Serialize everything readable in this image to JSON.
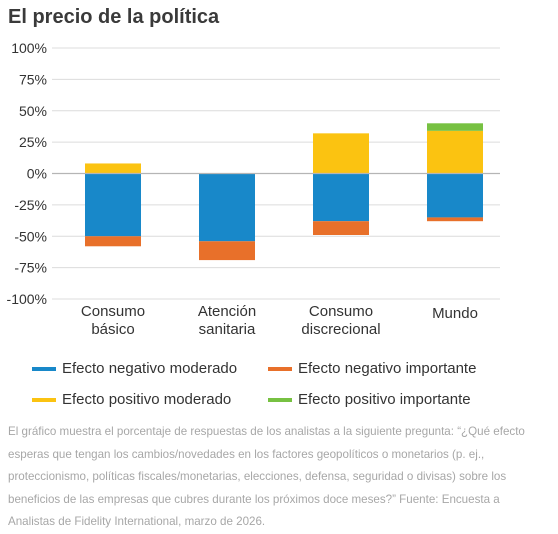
{
  "title": "El precio de la política",
  "colors": {
    "neg_moderate": "#1888c9",
    "neg_important": "#e8702a",
    "pos_moderate": "#fbc311",
    "pos_important": "#77c142",
    "grid": "#dcdcdc",
    "zero": "#b5b5b5",
    "tick_text": "#333333"
  },
  "chart_data": {
    "type": "bar",
    "stacked": true,
    "categories": [
      [
        "Consumo",
        "básico"
      ],
      [
        "Atención",
        "sanitaria"
      ],
      [
        "Consumo",
        "discrecional"
      ],
      [
        "Mundo"
      ]
    ],
    "ylim": [
      -100,
      100
    ],
    "yticks": [
      100,
      75,
      50,
      25,
      0,
      -25,
      -50,
      -75,
      -100
    ],
    "ytick_labels": [
      "100%",
      "75%",
      "50%",
      "25%",
      "0%",
      "-25%",
      "-50%",
      "-75%",
      "-100%"
    ],
    "grid": true,
    "legend_position": "bottom",
    "series": [
      {
        "name": "Efecto negativo moderado",
        "color_key": "neg_moderate",
        "values": [
          -50,
          -54,
          -38,
          -35
        ]
      },
      {
        "name": "Efecto negativo importante",
        "color_key": "neg_important",
        "values": [
          -8,
          -15,
          -11,
          -3
        ]
      },
      {
        "name": "Efecto positivo moderado",
        "color_key": "pos_moderate",
        "values": [
          8,
          0,
          32,
          34
        ]
      },
      {
        "name": "Efecto positivo importante",
        "color_key": "pos_important",
        "values": [
          0,
          0,
          0,
          6
        ]
      }
    ]
  },
  "legend": {
    "items": [
      {
        "label": "Efecto negativo moderado",
        "color_key": "neg_moderate"
      },
      {
        "label": "Efecto negativo importante",
        "color_key": "neg_important"
      },
      {
        "label": "Efecto positivo moderado",
        "color_key": "pos_moderate"
      },
      {
        "label": "Efecto positivo importante",
        "color_key": "pos_important"
      }
    ]
  },
  "footnote": "El gráfico muestra el porcentaje de respuestas de los analistas a la siguiente pregunta: “¿Qué efecto esperas que tengan los cambios/novedades en los factores geopolíticos o monetarios (p. ej., proteccionismo, políticas fiscales/monetarias, elecciones, defensa, seguridad o divisas) sobre los beneficios de las empresas que cubres durante los próximos doce meses?” Fuente: Encuesta a Analistas de Fidelity International, marzo de 2026."
}
